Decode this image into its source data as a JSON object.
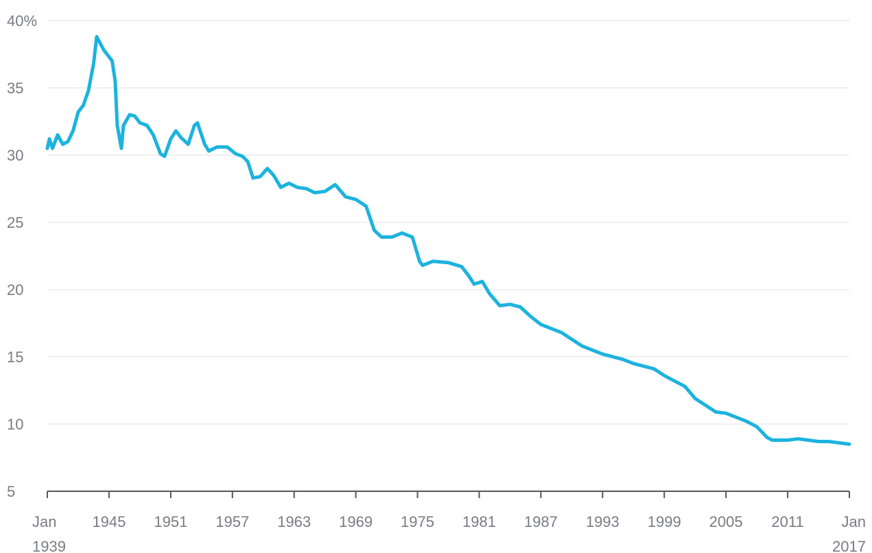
{
  "chart_data": {
    "type": "line",
    "x": [
      1939,
      1939.2,
      1939.5,
      1940,
      1940.5,
      1941,
      1941.5,
      1942,
      1942.5,
      1943,
      1943.5,
      1943.8,
      1944.5,
      1945.3,
      1945.6,
      1945.8,
      1946.2,
      1946.4,
      1947,
      1947.5,
      1948,
      1948.7,
      1949.3,
      1950,
      1950.4,
      1951,
      1951.5,
      1952,
      1952.7,
      1953.3,
      1953.6,
      1954.3,
      1954.7,
      1955.5,
      1956.5,
      1957.3,
      1958,
      1958.5,
      1959,
      1959.7,
      1960.4,
      1961,
      1961.7,
      1962.5,
      1963.3,
      1964.2,
      1965,
      1966,
      1967,
      1968,
      1969,
      1970,
      1970.8,
      1971.5,
      1972.5,
      1973.5,
      1974.5,
      1975.2,
      1975.5,
      1976.5,
      1978,
      1979.3,
      1980,
      1980.5,
      1981.3,
      1982,
      1983,
      1984,
      1985,
      1986,
      1987,
      1988,
      1989,
      1990,
      1991,
      1992,
      1993,
      1994,
      1995,
      1996,
      1997,
      1998,
      1999,
      2000,
      2001,
      2002,
      2003,
      2004,
      2005,
      2006,
      2007,
      2008,
      2009,
      2009.5,
      2011,
      2012,
      2013,
      2014,
      2015,
      2016,
      2017
    ],
    "series": [
      {
        "color": "#1cb3de",
        "values": [
          30.5,
          31.2,
          30.5,
          31.5,
          30.8,
          31.0,
          31.8,
          33.2,
          33.7,
          34.8,
          36.8,
          38.8,
          37.8,
          37.0,
          35.5,
          32.2,
          30.5,
          32.2,
          33.0,
          32.9,
          32.4,
          32.2,
          31.5,
          30.1,
          29.9,
          31.2,
          31.8,
          31.3,
          30.8,
          32.2,
          32.4,
          30.8,
          30.3,
          30.6,
          30.6,
          30.1,
          29.9,
          29.5,
          28.3,
          28.4,
          29.0,
          28.5,
          27.6,
          27.9,
          27.6,
          27.5,
          27.2,
          27.3,
          27.8,
          26.9,
          26.7,
          26.2,
          24.4,
          23.9,
          23.9,
          24.2,
          23.9,
          22.1,
          21.8,
          22.1,
          22.0,
          21.7,
          21.0,
          20.4,
          20.6,
          19.7,
          18.8,
          18.9,
          18.7,
          18.0,
          17.4,
          17.1,
          16.8,
          16.3,
          15.8,
          15.5,
          15.2,
          15.0,
          14.8,
          14.5,
          14.3,
          14.1,
          13.6,
          13.2,
          12.8,
          11.9,
          11.4,
          10.9,
          10.8,
          10.5,
          10.2,
          9.8,
          9.0,
          8.8,
          8.8,
          8.9,
          8.8,
          8.7,
          8.7,
          8.6,
          8.5
        ]
      }
    ],
    "xlim": [
      1939,
      2017
    ],
    "xticks": [
      {
        "value": 1939,
        "label": "Jan 1939"
      },
      1945,
      1951,
      1957,
      1963,
      1969,
      1975,
      1981,
      1987,
      1993,
      1999,
      2005,
      2011,
      {
        "value": 2017,
        "label": "Jan 2017"
      }
    ],
    "ylim": [
      5,
      40
    ],
    "yticks": [
      5,
      10,
      15,
      20,
      25,
      30,
      35,
      {
        "value": 40,
        "label": "40%"
      }
    ],
    "grid": true
  }
}
